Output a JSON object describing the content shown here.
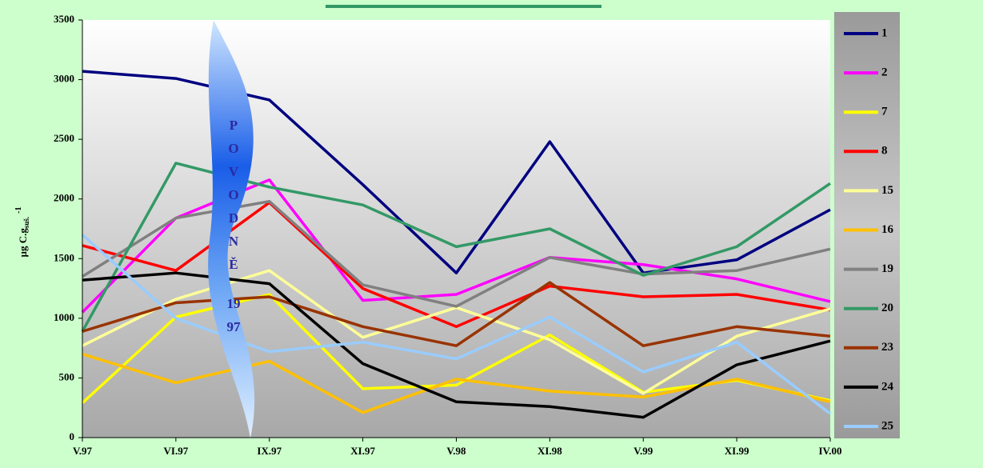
{
  "chart_data": {
    "type": "line",
    "y_label": "µg C.g",
    "y_label_sub": "suš.",
    "y_label_sup": "-1",
    "annotation": [
      "P",
      "O",
      "V",
      "O",
      "D",
      "N",
      "Ě",
      "19",
      "97"
    ],
    "categories": [
      "V.97",
      "VI.97",
      "IX.97",
      "XI.97",
      "V.98",
      "XI.98",
      "V.99",
      "XI.99",
      "IV.00"
    ],
    "ylim": [
      0,
      3500
    ],
    "yticks": [
      0,
      500,
      1000,
      1500,
      2000,
      2500,
      3000,
      3500
    ],
    "legend": "right",
    "series": [
      {
        "name": "1",
        "color": "#000080",
        "values": [
          3070,
          3010,
          2830,
          2120,
          1380,
          2480,
          1380,
          1490,
          1910
        ]
      },
      {
        "name": "2",
        "color": "#ff00ff",
        "values": [
          1050,
          1840,
          2160,
          1150,
          1200,
          1510,
          1450,
          1330,
          1140
        ]
      },
      {
        "name": "7",
        "color": "#ffff00",
        "values": [
          290,
          1010,
          1200,
          410,
          440,
          860,
          380,
          480,
          310
        ]
      },
      {
        "name": "8",
        "color": "#ff0000",
        "values": [
          1610,
          1400,
          1970,
          1250,
          930,
          1270,
          1180,
          1200,
          1070
        ]
      },
      {
        "name": "15",
        "color": "#ffff99",
        "values": [
          770,
          1160,
          1400,
          840,
          1090,
          820,
          370,
          850,
          1080
        ]
      },
      {
        "name": "16",
        "color": "#ffc000",
        "values": [
          700,
          460,
          640,
          210,
          490,
          390,
          340,
          490,
          300
        ]
      },
      {
        "name": "19",
        "color": "#808080",
        "values": [
          1350,
          1840,
          1980,
          1280,
          1100,
          1510,
          1370,
          1400,
          1580
        ]
      },
      {
        "name": "20",
        "color": "#339966",
        "values": [
          890,
          2300,
          2100,
          1950,
          1600,
          1750,
          1360,
          1600,
          2130
        ]
      },
      {
        "name": "23",
        "color": "#993300",
        "values": [
          890,
          1130,
          1180,
          930,
          770,
          1300,
          770,
          930,
          850
        ]
      },
      {
        "name": "24",
        "color": "#000000",
        "values": [
          1320,
          1380,
          1290,
          620,
          300,
          260,
          170,
          610,
          810
        ]
      },
      {
        "name": "25",
        "color": "#99ccff",
        "values": [
          1700,
          1000,
          720,
          800,
          660,
          1010,
          550,
          800,
          200
        ]
      }
    ]
  }
}
